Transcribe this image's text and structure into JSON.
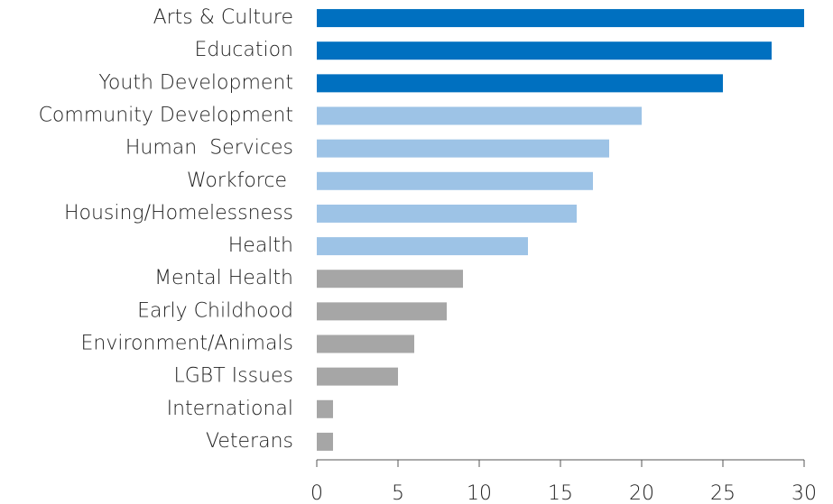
{
  "chart_data": {
    "type": "bar",
    "orientation": "horizontal",
    "categories": [
      "Arts & Culture",
      "Education",
      "Youth Development",
      "Community Development",
      "Human  Services",
      "Workforce ",
      "Housing/Homelessness",
      "Health",
      "Mental Health",
      "Early Childhood",
      "Environment/Animals",
      "LGBT Issues",
      "International",
      "Veterans"
    ],
    "values": [
      30,
      28,
      25,
      20,
      18,
      17,
      16,
      13,
      9,
      8,
      6,
      5,
      1,
      1
    ],
    "colors": [
      "#0070c0",
      "#0070c0",
      "#0070c0",
      "#9dc3e6",
      "#9dc3e6",
      "#9dc3e6",
      "#9dc3e6",
      "#9dc3e6",
      "#a6a6a6",
      "#a6a6a6",
      "#a6a6a6",
      "#a6a6a6",
      "#a6a6a6",
      "#a6a6a6"
    ],
    "xlim": [
      0,
      30
    ],
    "xticks": [
      0,
      5,
      10,
      15,
      20,
      25,
      30
    ],
    "grid": false
  }
}
